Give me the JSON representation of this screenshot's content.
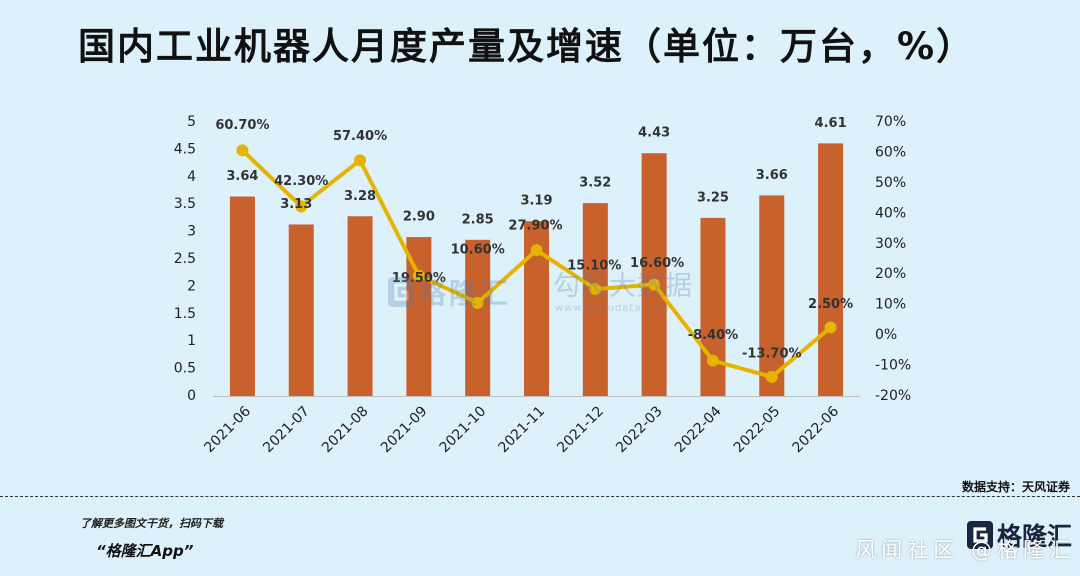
{
  "chart_data": {
    "type": "bar",
    "title": "国内工业机器人月度产量及增速（单位：万台，%）",
    "categories": [
      "2021-06",
      "2021-07",
      "2021-08",
      "2021-09",
      "2021-10",
      "2021-11",
      "2021-12",
      "2022-03",
      "2022-04",
      "2022-05",
      "2022-06"
    ],
    "series": [
      {
        "type": "bar",
        "axis": "y_left",
        "values": [
          3.64,
          3.13,
          3.28,
          2.9,
          2.85,
          3.19,
          3.52,
          4.43,
          3.25,
          3.66,
          4.61
        ],
        "labels": [
          "3.64",
          "3.13",
          "3.28",
          "2.90",
          "2.85",
          "3.19",
          "3.52",
          "4.43",
          "3.25",
          "3.66",
          "4.61"
        ]
      },
      {
        "type": "line",
        "axis": "y_right",
        "values": [
          60.7,
          42.3,
          57.4,
          19.5,
          10.6,
          27.9,
          15.1,
          16.6,
          -8.4,
          -13.7,
          2.5
        ],
        "labels": [
          "60.70%",
          "42.30%",
          "57.40%",
          "19.50%",
          "10.60%",
          "27.90%",
          "15.10%",
          "16.60%",
          "-8.40%",
          "-13.70%",
          "2.50%"
        ]
      }
    ],
    "y_left": {
      "min": 0,
      "max": 5,
      "ticks": [
        0,
        0.5,
        1,
        1.5,
        2,
        2.5,
        3,
        3.5,
        4,
        4.5,
        5
      ],
      "tick_labels": [
        "0",
        "0.5",
        "1",
        "1.5",
        "2",
        "2.5",
        "3",
        "3.5",
        "4",
        "4.5",
        "5"
      ]
    },
    "y_right": {
      "min": -20,
      "max": 70,
      "ticks": [
        -20,
        -10,
        0,
        10,
        20,
        30,
        40,
        50,
        60,
        70
      ],
      "tick_labels": [
        "-20%",
        "-10%",
        "0%",
        "10%",
        "20%",
        "30%",
        "40%",
        "50%",
        "60%",
        "70%"
      ]
    },
    "grid": false
  },
  "colors": {
    "background": "#dcf1fa",
    "bar": "#c8612b",
    "line": "#e6b400",
    "axis": "#bdbdbd",
    "text": "#111111"
  },
  "footer": {
    "source": "数据支持：天风证券",
    "promo": "了解更多图文干货，扫码下载",
    "app_name": "“格隆汇App”",
    "logo_icon": "g-logo-icon",
    "logo_text": "格隆汇"
  },
  "watermarks": {
    "center_brand_icon": "g-logo-icon",
    "center_brand": "格隆汇",
    "data_brand": "勾股大数据",
    "data_url": "www.gogudata.com",
    "community": "风闻社区 @格隆汇"
  }
}
